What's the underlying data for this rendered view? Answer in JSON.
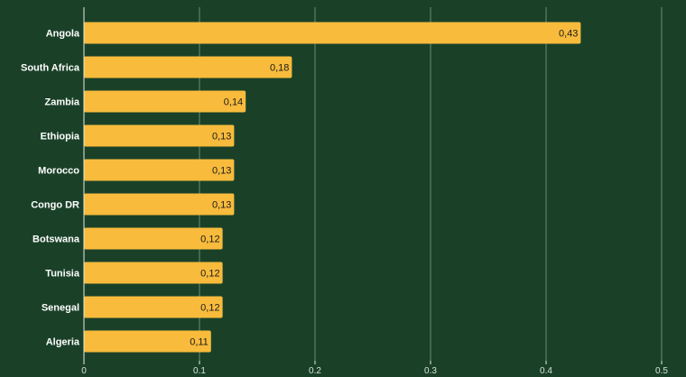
{
  "chart_data": {
    "type": "bar",
    "orientation": "horizontal",
    "categories": [
      "Angola",
      "South Africa",
      "Zambia",
      "Ethiopia",
      "Morocco",
      "Congo DR",
      "Botswana",
      "Tunisia",
      "Senegal",
      "Algeria"
    ],
    "values": [
      0.43,
      0.18,
      0.14,
      0.13,
      0.13,
      0.13,
      0.12,
      0.12,
      0.12,
      0.11
    ],
    "value_labels": [
      "0,43",
      "0,18",
      "0,14",
      "0,13",
      "0,13",
      "0,13",
      "0,12",
      "0,12",
      "0,12",
      "0,11"
    ],
    "x_ticks": [
      0,
      0.1,
      0.2,
      0.3,
      0.4,
      0.5
    ],
    "x_tick_labels": [
      "0",
      "0.1",
      "0.2",
      "0.3",
      "0.4",
      "0.5"
    ],
    "xlim": [
      0,
      0.5
    ],
    "grid": true,
    "legend": "none",
    "title": "",
    "xlabel": "",
    "ylabel": ""
  },
  "colors": {
    "background": "#1a4128",
    "bar": "#f8bb3c",
    "gridline": "#6a8a73",
    "axis": "#e6ece8",
    "category_text": "#ffffff",
    "value_text": "#1b1b1b",
    "tick_text": "#d8e0da"
  }
}
